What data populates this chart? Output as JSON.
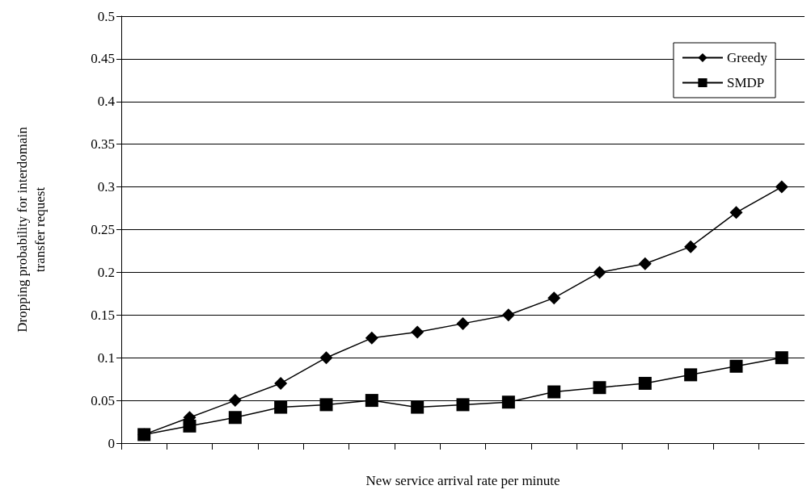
{
  "chart_data": {
    "type": "line",
    "xlabel": "New service arrival rate per minute",
    "ylabel": "Dropping probability for interdomain\ntransfer request",
    "categories": [
      null,
      null,
      null,
      null,
      null,
      null,
      null,
      null,
      null,
      null,
      null,
      null,
      null,
      null,
      null
    ],
    "series": [
      {
        "name": "Greedy",
        "color": "#000000",
        "marker": "diamond",
        "values": [
          0.01,
          0.03,
          0.05,
          0.07,
          0.1,
          0.123,
          0.13,
          0.14,
          0.15,
          0.17,
          0.2,
          0.21,
          0.23,
          0.27,
          0.3
        ]
      },
      {
        "name": "SMDP",
        "color": "#000000",
        "marker": "square",
        "values": [
          0.01,
          0.02,
          0.03,
          0.042,
          0.045,
          0.05,
          0.042,
          0.045,
          0.048,
          0.06,
          0.065,
          0.07,
          0.08,
          0.09,
          0.1
        ]
      }
    ],
    "ylim": [
      0,
      0.5
    ],
    "yticks": [
      0,
      0.05,
      0.1,
      0.15,
      0.2,
      0.25,
      0.3,
      0.35,
      0.4,
      0.45,
      0.5
    ],
    "grid": "y",
    "legend": "top right",
    "tick_labels": "y",
    "line_style": "solid"
  }
}
